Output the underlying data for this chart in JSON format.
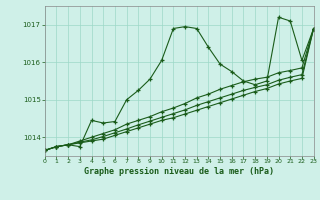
{
  "title": "Graphe pression niveau de la mer (hPa)",
  "bg_color": "#cff0e8",
  "grid_color": "#9dd8c8",
  "line_color": "#1a5c1a",
  "xlim": [
    0,
    23
  ],
  "ylim": [
    1013.5,
    1017.5
  ],
  "yticks": [
    1014,
    1015,
    1016,
    1017
  ],
  "xticks": [
    0,
    1,
    2,
    3,
    4,
    5,
    6,
    7,
    8,
    9,
    10,
    11,
    12,
    13,
    14,
    15,
    16,
    17,
    18,
    19,
    20,
    21,
    22,
    23
  ],
  "series": [
    [
      1013.65,
      1013.75,
      1013.8,
      1013.75,
      1014.45,
      1014.38,
      1014.42,
      1015.0,
      1015.25,
      1015.55,
      1016.05,
      1016.9,
      1016.95,
      1016.9,
      1016.4,
      1015.95,
      1015.75,
      1015.5,
      1015.4,
      1015.5,
      1017.2,
      1017.1,
      1016.05,
      1016.9
    ],
    [
      1013.65,
      1013.75,
      1013.8,
      1013.9,
      1014.0,
      1014.1,
      1014.2,
      1014.35,
      1014.45,
      1014.55,
      1014.68,
      1014.78,
      1014.9,
      1015.05,
      1015.15,
      1015.28,
      1015.38,
      1015.48,
      1015.55,
      1015.6,
      1015.72,
      1015.78,
      1015.85,
      1016.9
    ],
    [
      1013.65,
      1013.75,
      1013.8,
      1013.87,
      1013.93,
      1014.02,
      1014.12,
      1014.22,
      1014.33,
      1014.43,
      1014.53,
      1014.63,
      1014.73,
      1014.85,
      1014.95,
      1015.05,
      1015.15,
      1015.25,
      1015.33,
      1015.4,
      1015.52,
      1015.6,
      1015.67,
      1016.9
    ],
    [
      1013.65,
      1013.75,
      1013.8,
      1013.85,
      1013.9,
      1013.95,
      1014.05,
      1014.15,
      1014.25,
      1014.35,
      1014.45,
      1014.52,
      1014.62,
      1014.72,
      1014.82,
      1014.92,
      1015.02,
      1015.12,
      1015.22,
      1015.3,
      1015.42,
      1015.5,
      1015.57,
      1016.9
    ]
  ]
}
